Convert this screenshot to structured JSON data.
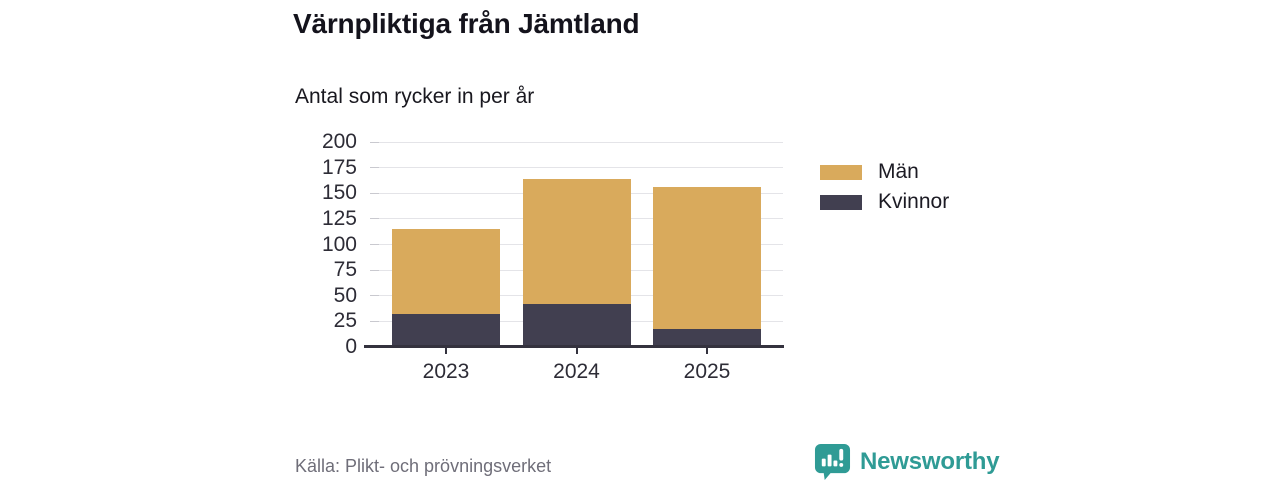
{
  "header": {
    "title": "Värnpliktiga från Jämtland",
    "subtitle": "Antal som rycker in per år"
  },
  "chart_data": {
    "type": "bar",
    "stacked": true,
    "categories": [
      "2023",
      "2024",
      "2025"
    ],
    "series": [
      {
        "name": "Män",
        "color": "#D9AA5C",
        "values": [
          83,
          122,
          139
        ]
      },
      {
        "name": "Kvinnor",
        "color": "#413F50",
        "values": [
          32,
          42,
          18
        ]
      }
    ],
    "stack_order_bottom_to_top": [
      "Kvinnor",
      "Män"
    ],
    "totals": [
      115,
      164,
      157
    ],
    "title": "Värnpliktiga från Jämtland",
    "subtitle": "Antal som rycker in per år",
    "xlabel": "",
    "ylabel": "",
    "ylim": [
      0,
      200
    ],
    "yticks": [
      0,
      25,
      50,
      75,
      100,
      125,
      150,
      175,
      200
    ],
    "grid": true,
    "legend_position": "right"
  },
  "legend": {
    "items": [
      {
        "label": "Män",
        "color": "#D9AA5C"
      },
      {
        "label": "Kvinnor",
        "color": "#413F50"
      }
    ]
  },
  "source": {
    "text": "Källa: Plikt- och prövningsverket"
  },
  "branding": {
    "name": "Newsworthy",
    "color": "#2F9B95"
  },
  "colors": {
    "men": "#D9AA5C",
    "women": "#413F50",
    "axis": "#34323E",
    "gridline": "#E4E4E8",
    "muted_text": "#6F6E79",
    "brand_teal": "#2F9B95"
  }
}
